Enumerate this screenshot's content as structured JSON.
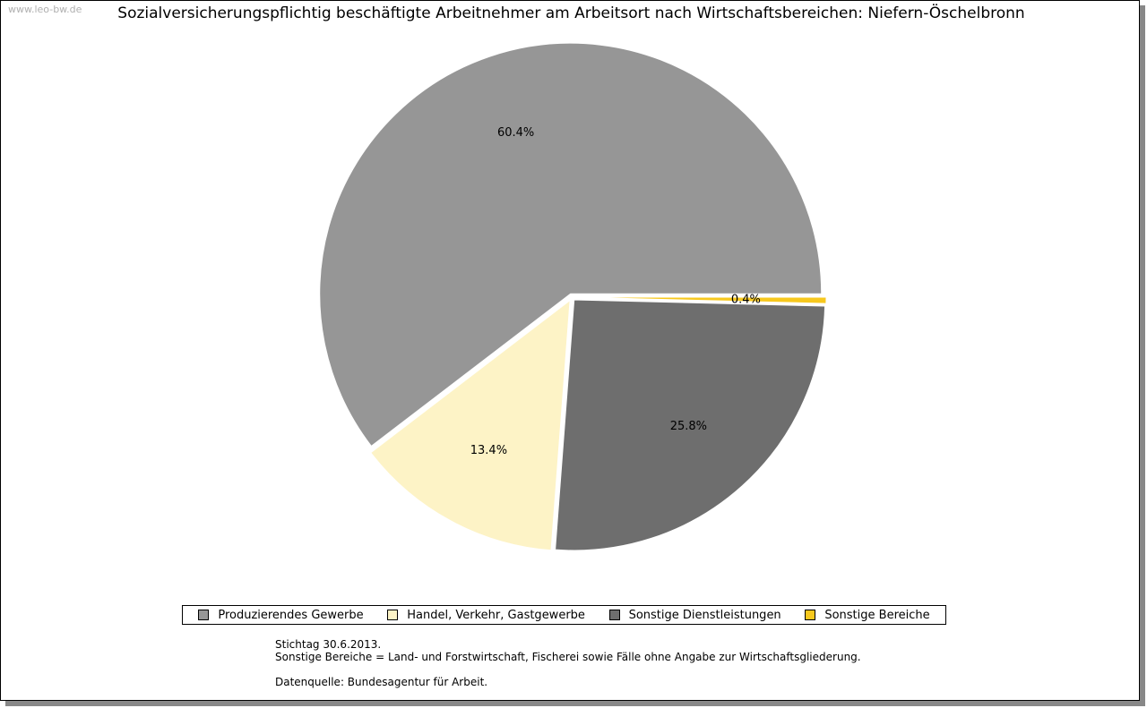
{
  "watermark": "www.leo-bw.de",
  "chart_data": {
    "type": "pie",
    "title": "Sozialversicherungspflichtig beschäftigte Arbeitnehmer am Arbeitsort nach Wirtschaftsbereichen: Niefern-Öschelbronn",
    "categories": [
      "Produzierendes Gewerbe",
      "Handel, Verkehr, Gastgewerbe",
      "Sonstige Dienstleistungen",
      "Sonstige Bereiche"
    ],
    "values": [
      60.4,
      13.4,
      25.8,
      0.4
    ],
    "labels": [
      "60.4%",
      "13.4%",
      "25.8%",
      "0.4%"
    ],
    "colors": [
      "#969696",
      "#fdf3c6",
      "#6e6e6e",
      "#f7c81e"
    ],
    "legend_position": "bottom"
  },
  "notes": {
    "line1": "Stichtag 30.6.2013.",
    "line2": "Sonstige Bereiche = Land- und Forstwirtschaft, Fischerei sowie Fälle ohne Angabe zur Wirtschaftsgliederung.",
    "line3": "Datenquelle: Bundesagentur für Arbeit."
  }
}
